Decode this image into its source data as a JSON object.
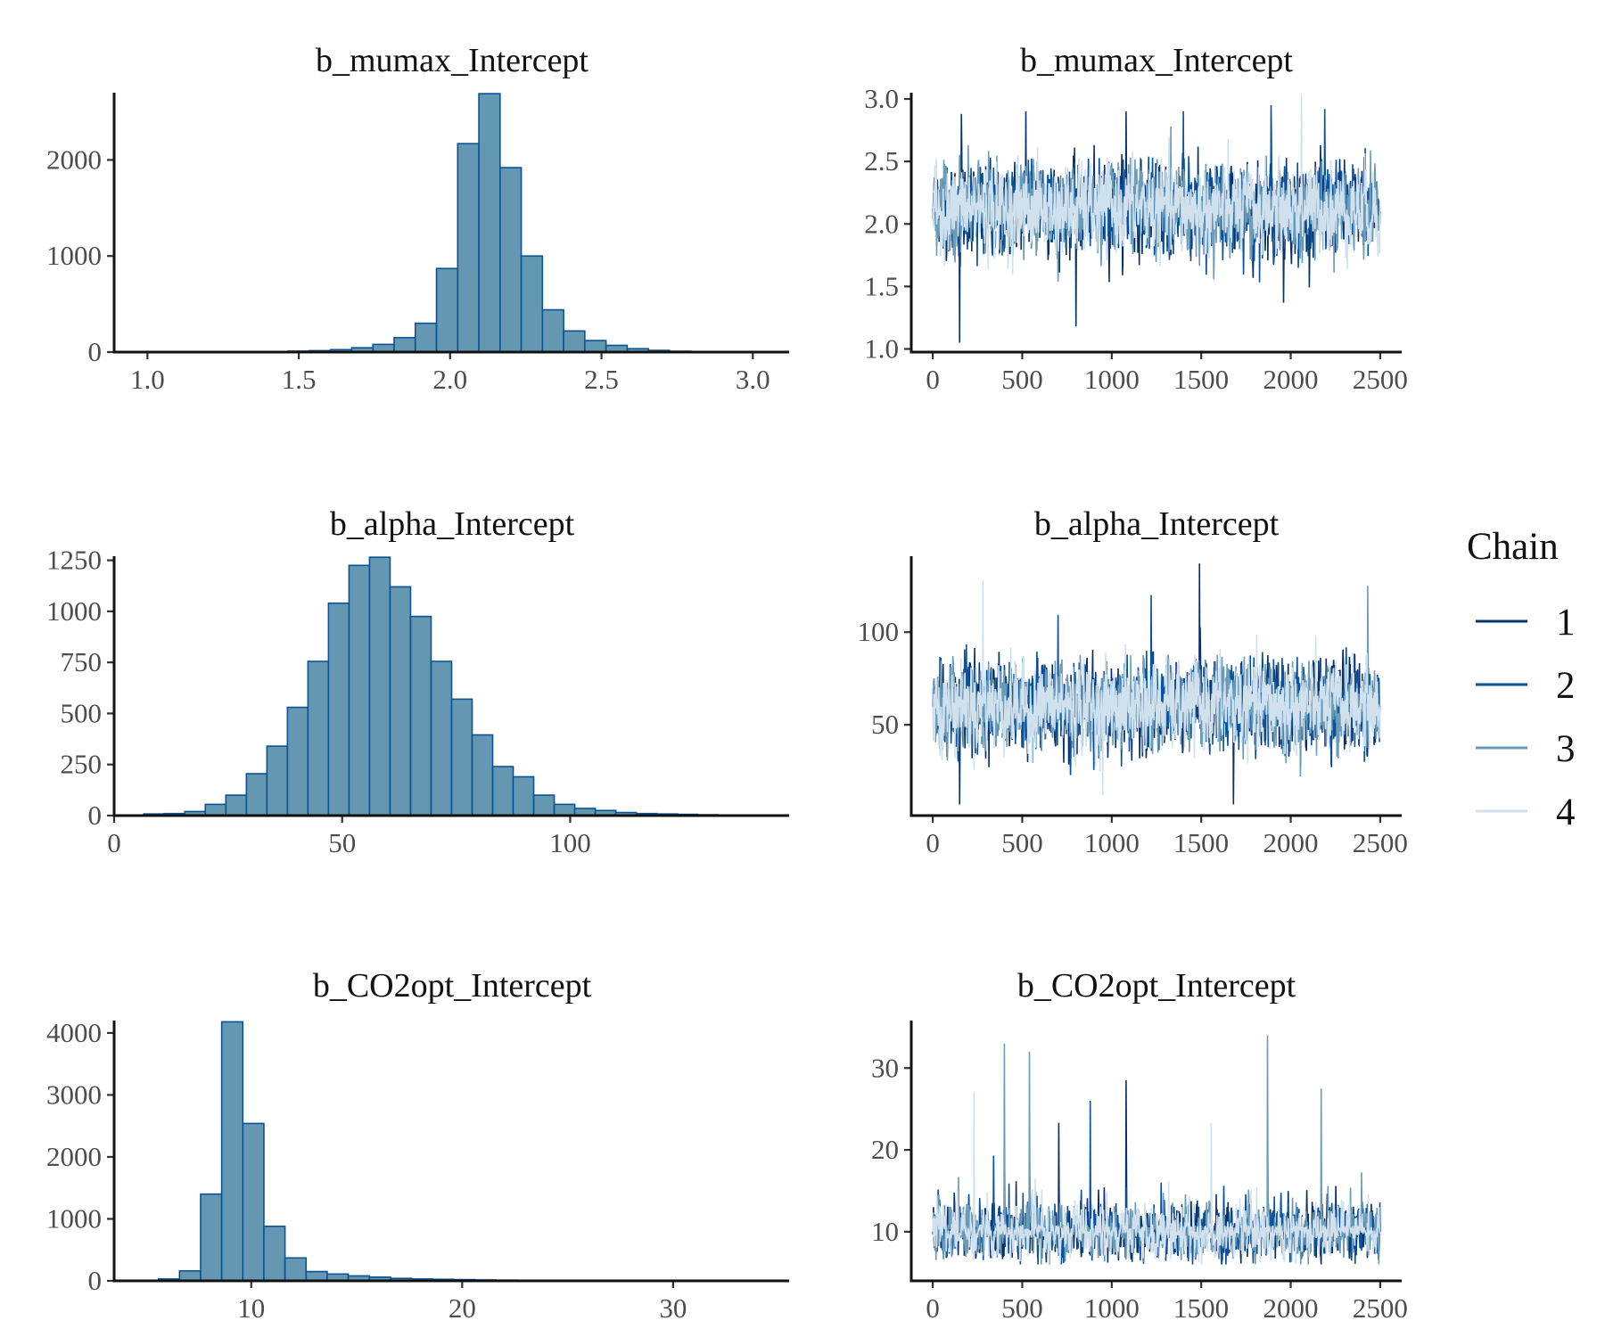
{
  "legend": {
    "title": "Chain",
    "items": [
      {
        "label": "1",
        "color": "#08306b"
      },
      {
        "label": "2",
        "color": "#08519c"
      },
      {
        "label": "3",
        "color": "#6a9bb8"
      },
      {
        "label": "4",
        "color": "#d0e1ed"
      }
    ]
  },
  "colors": {
    "hist_fill": "#6497b1",
    "hist_stroke": "#0b5394"
  },
  "chart_data": [
    {
      "type": "bar",
      "title": "b_mumax_Intercept",
      "xlim": [
        0.89,
        3.12
      ],
      "ylim": [
        0,
        2700
      ],
      "xticks": [
        1.0,
        1.5,
        2.0,
        2.5,
        3.0
      ],
      "xtick_labels": [
        "1.0",
        "1.5",
        "2.0",
        "2.5",
        "3.0"
      ],
      "yticks": [
        0,
        1000,
        2000
      ],
      "bin_width": 0.07,
      "bin_starts": [
        0.975,
        1.045,
        1.115,
        1.185,
        1.255,
        1.325,
        1.395,
        1.465,
        1.535,
        1.605,
        1.675,
        1.745,
        1.815,
        1.885,
        1.955,
        2.025,
        2.095,
        2.165,
        2.235,
        2.305,
        2.375,
        2.445,
        2.515,
        2.585,
        2.655,
        2.725,
        2.795,
        2.865,
        2.935,
        3.005
      ],
      "values": [
        2,
        1,
        1,
        2,
        3,
        4,
        6,
        10,
        15,
        25,
        45,
        80,
        150,
        300,
        870,
        2170,
        2690,
        1920,
        1000,
        440,
        220,
        120,
        70,
        35,
        18,
        9,
        5,
        3,
        2,
        1
      ]
    },
    {
      "type": "line",
      "title": "b_mumax_Intercept",
      "xlim": [
        -120,
        2620
      ],
      "ylim": [
        0.975,
        3.05
      ],
      "xticks": [
        0,
        500,
        1000,
        1500,
        2000,
        2500
      ],
      "yticks": [
        1.0,
        1.5,
        2.0,
        2.5,
        3.0
      ],
      "ytick_labels": [
        "1.0",
        "1.5",
        "2.0",
        "2.5",
        "3.0"
      ],
      "iterations": 2500,
      "series": [
        {
          "color": "#08306b",
          "values": [
            {
              "x": 0,
              "y": 2.12
            },
            {
              "x": 150,
              "y": 1.05
            },
            {
              "x": 160,
              "y": 2.88
            },
            {
              "x": 520,
              "y": 2.9
            },
            {
              "x": 800,
              "y": 1.18
            },
            {
              "x": 1080,
              "y": 2.9
            },
            {
              "x": 1960,
              "y": 1.37
            },
            {
              "x": 2500,
              "y": 2.12
            }
          ]
        },
        {
          "color": "#08519c",
          "values": [
            {
              "x": 0,
              "y": 2.13
            },
            {
              "x": 1400,
              "y": 2.9
            },
            {
              "x": 1890,
              "y": 2.95
            },
            {
              "x": 2190,
              "y": 2.92
            },
            {
              "x": 2500,
              "y": 2.1
            }
          ]
        },
        {
          "color": "#6a9bb8",
          "values": [
            {
              "x": 0,
              "y": 2.12
            },
            {
              "x": 1330,
              "y": 2.78
            },
            {
              "x": 2500,
              "y": 2.1
            }
          ]
        },
        {
          "color": "#d0e1ed",
          "values": [
            {
              "x": 0,
              "y": 2.12
            },
            {
              "x": 2060,
              "y": 3.03
            },
            {
              "x": 2500,
              "y": 2.12
            }
          ]
        }
      ]
    },
    {
      "type": "bar",
      "title": "b_alpha_Intercept",
      "xlim": [
        0,
        148
      ],
      "ylim": [
        0,
        1270
      ],
      "xticks": [
        0,
        50,
        100
      ],
      "yticks": [
        0,
        250,
        500,
        750,
        1000,
        1250
      ],
      "bin_width": 4.5,
      "bin_starts": [
        6.5,
        11,
        15.5,
        20,
        24.5,
        29,
        33.5,
        38,
        42.5,
        47,
        51.5,
        56,
        60.5,
        65,
        69.5,
        74,
        78.5,
        83,
        87.5,
        92,
        96.5,
        101,
        105.5,
        110,
        114.5,
        119,
        123.5,
        128,
        132.5
      ],
      "values": [
        8,
        10,
        20,
        55,
        100,
        205,
        340,
        530,
        755,
        1040,
        1225,
        1265,
        1120,
        975,
        755,
        570,
        395,
        240,
        190,
        100,
        55,
        35,
        25,
        15,
        10,
        8,
        6,
        4,
        3
      ]
    },
    {
      "type": "line",
      "title": "b_alpha_Intercept",
      "xlim": [
        -120,
        2620
      ],
      "ylim": [
        1,
        141
      ],
      "xticks": [
        0,
        500,
        1000,
        1500,
        2000,
        2500
      ],
      "yticks": [
        50,
        100
      ],
      "iterations": 2500,
      "series": [
        {
          "color": "#08306b",
          "values": [
            {
              "x": 0,
              "y": 60
            },
            {
              "x": 150,
              "y": 7
            },
            {
              "x": 1490,
              "y": 137
            },
            {
              "x": 1680,
              "y": 7
            },
            {
              "x": 2500,
              "y": 60
            }
          ]
        },
        {
          "color": "#08519c",
          "values": [
            {
              "x": 0,
              "y": 60
            },
            {
              "x": 1220,
              "y": 120
            },
            {
              "x": 2500,
              "y": 60
            }
          ]
        },
        {
          "color": "#6a9bb8",
          "values": [
            {
              "x": 0,
              "y": 60
            },
            {
              "x": 2430,
              "y": 125
            },
            {
              "x": 2500,
              "y": 60
            }
          ]
        },
        {
          "color": "#d0e1ed",
          "values": [
            {
              "x": 0,
              "y": 60
            },
            {
              "x": 280,
              "y": 128
            },
            {
              "x": 950,
              "y": 12
            },
            {
              "x": 2500,
              "y": 60
            }
          ]
        }
      ]
    },
    {
      "type": "bar",
      "title": "b_CO2opt_Intercept",
      "xlim": [
        3.5,
        35.5
      ],
      "ylim": [
        0,
        4200
      ],
      "xticks": [
        10,
        20,
        30
      ],
      "yticks": [
        0,
        1000,
        2000,
        3000,
        4000
      ],
      "bin_width": 1.0,
      "bin_starts": [
        4.6,
        5.6,
        6.6,
        7.6,
        8.6,
        9.6,
        10.6,
        11.6,
        12.6,
        13.6,
        14.6,
        15.6,
        16.6,
        17.6,
        18.6,
        19.6,
        20.6,
        21.6,
        22.6,
        23.6,
        24.6,
        25.6,
        26.6,
        27.6,
        28.6,
        29.6,
        30.6,
        31.6,
        32.6,
        33.6
      ],
      "values": [
        8,
        30,
        160,
        1400,
        4180,
        2540,
        880,
        370,
        150,
        110,
        80,
        60,
        40,
        30,
        25,
        20,
        15,
        12,
        10,
        8,
        7,
        6,
        5,
        5,
        4,
        4,
        3,
        3,
        2,
        2
      ]
    },
    {
      "type": "line",
      "title": "b_CO2opt_Intercept",
      "xlim": [
        -120,
        2620
      ],
      "ylim": [
        4,
        35.8
      ],
      "xticks": [
        0,
        500,
        1000,
        1500,
        2000,
        2500
      ],
      "yticks": [
        10,
        20,
        30
      ],
      "iterations": 2500,
      "series": [
        {
          "color": "#08306b",
          "values": [
            {
              "x": 0,
              "y": 10
            },
            {
              "x": 1080,
              "y": 28.5
            },
            {
              "x": 2500,
              "y": 10
            }
          ]
        },
        {
          "color": "#08519c",
          "values": [
            {
              "x": 0,
              "y": 10
            },
            {
              "x": 880,
              "y": 26
            },
            {
              "x": 2500,
              "y": 10
            }
          ]
        },
        {
          "color": "#6a9bb8",
          "values": [
            {
              "x": 0,
              "y": 10
            },
            {
              "x": 400,
              "y": 33
            },
            {
              "x": 540,
              "y": 32
            },
            {
              "x": 1870,
              "y": 34
            },
            {
              "x": 2170,
              "y": 27.5
            },
            {
              "x": 2500,
              "y": 10
            }
          ]
        },
        {
          "color": "#d0e1ed",
          "values": [
            {
              "x": 0,
              "y": 10
            },
            {
              "x": 230,
              "y": 27
            },
            {
              "x": 2500,
              "y": 10
            }
          ]
        }
      ]
    }
  ]
}
